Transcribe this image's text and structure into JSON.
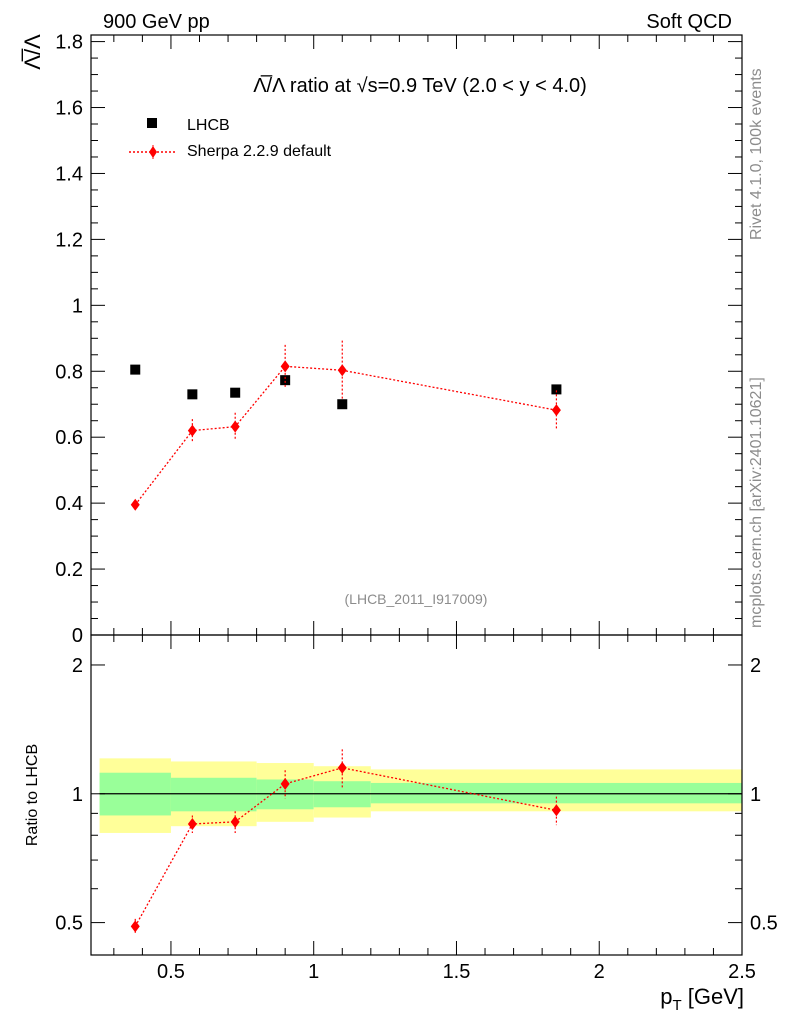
{
  "header": {
    "left": "900 GeV pp",
    "right": "Soft QCD"
  },
  "side_labels": {
    "rivet": "Rivet 4.1.0,  100k events",
    "mcplots": "mcplots.cern.ch [arXiv:2401.10621]"
  },
  "colors": {
    "data": "#000000",
    "mc": "#ff0000",
    "band_inner": "#99ff99",
    "band_outer": "#ffff99",
    "side_text": "#8c8c8c"
  },
  "chart_data": [
    {
      "type": "scatter",
      "title": "Λ̅/Λ ratio at √s=0.9 TeV (2.0 < y < 4.0)",
      "ylabel": "Λ̅/Λ",
      "xlabel": "",
      "xlim": [
        0.22,
        2.5
      ],
      "ylim": [
        0,
        1.82
      ],
      "y_ticks": [
        0,
        0.2,
        0.4,
        0.6,
        0.8,
        1,
        1.2,
        1.4,
        1.6,
        1.8
      ],
      "y_tick_labels": [
        "0",
        "0.2",
        "0.4",
        "0.6",
        "0.8",
        "1",
        "1.2",
        "1.4",
        "1.6",
        "1.8"
      ],
      "analysis_id": "(LHCB_2011_I917009)",
      "legend": {
        "position": "top-left"
      },
      "series": [
        {
          "name": "LHCB",
          "marker": "square",
          "x": [
            0.375,
            0.575,
            0.725,
            0.9,
            1.1,
            1.85
          ],
          "y": [
            0.805,
            0.73,
            0.735,
            0.773,
            0.7,
            0.745
          ]
        },
        {
          "name": "Sherpa 2.2.9 default",
          "marker": "diamond",
          "line": "dotted",
          "x": [
            0.375,
            0.575,
            0.725,
            0.9,
            1.1,
            1.85
          ],
          "y": [
            0.395,
            0.62,
            0.632,
            0.815,
            0.803,
            0.682
          ],
          "err": [
            0.015,
            0.035,
            0.042,
            0.065,
            0.09,
            0.06
          ]
        }
      ]
    },
    {
      "type": "scatter",
      "title": "",
      "ylabel": "Ratio to LHCB",
      "xlabel": "p_T [GeV]",
      "xlim": [
        0.22,
        2.5
      ],
      "ylim": [
        0.42,
        2.35
      ],
      "y_scale": "log",
      "x_ticks": [
        0.5,
        1,
        1.5,
        2,
        2.5
      ],
      "x_tick_labels": [
        "0.5",
        "1",
        "1.5",
        "2",
        "2.5"
      ],
      "y_ticks": [
        0.5,
        1,
        2
      ],
      "y_tick_labels": [
        "0.5",
        "1",
        "2"
      ],
      "reference_line": 1,
      "bands": {
        "edges": [
          0.25,
          0.5,
          0.8,
          1.0,
          1.2,
          2.5
        ],
        "inner": [
          [
            0.89,
            1.12
          ],
          [
            0.91,
            1.09
          ],
          [
            0.92,
            1.08
          ],
          [
            0.93,
            1.07
          ],
          [
            0.95,
            1.06
          ]
        ],
        "outer": [
          [
            0.81,
            1.21
          ],
          [
            0.84,
            1.19
          ],
          [
            0.86,
            1.18
          ],
          [
            0.88,
            1.16
          ],
          [
            0.91,
            1.14
          ]
        ]
      },
      "series": [
        {
          "name": "Sherpa 2.2.9 default",
          "x": [
            0.375,
            0.575,
            0.725,
            0.9,
            1.1,
            1.85
          ],
          "y": [
            0.49,
            0.85,
            0.86,
            1.055,
            1.15,
            0.915
          ],
          "err": [
            0.02,
            0.04,
            0.05,
            0.08,
            0.12,
            0.07
          ]
        }
      ]
    }
  ]
}
